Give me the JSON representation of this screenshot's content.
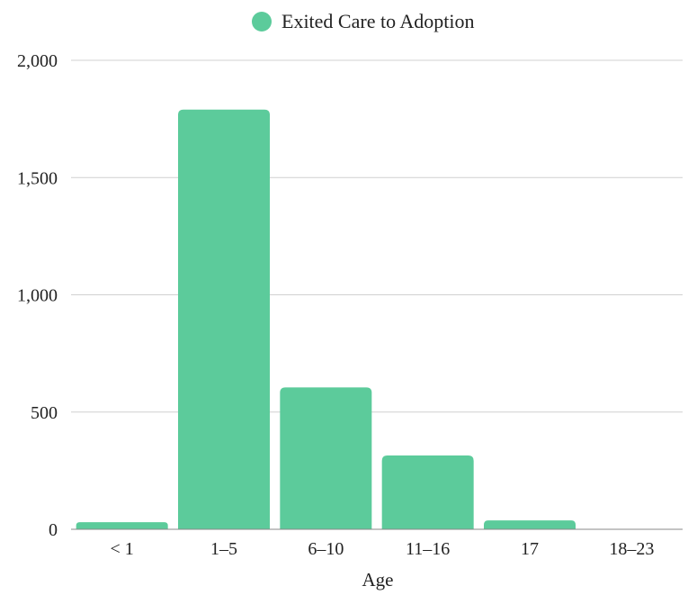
{
  "chart_data": {
    "type": "bar",
    "categories": [
      "< 1",
      "1–5",
      "6–10",
      "11–16",
      "17",
      "18–23"
    ],
    "series": [
      {
        "name": "Exited Care to Adoption",
        "values": [
          30,
          1790,
          605,
          315,
          38,
          0
        ]
      }
    ],
    "xlabel": "Age",
    "ylabel": "",
    "ylim": [
      0,
      2000
    ],
    "yticks": [
      0,
      500,
      1000,
      1500,
      2000
    ],
    "ytick_labels": [
      "0",
      "500",
      "1,000",
      "1,500",
      "2,000"
    ],
    "grid": true,
    "legend_position": "top-center"
  },
  "colors": {
    "bar": "#5ccb9b",
    "grid": "#d0d0d0",
    "axis": "#888888",
    "text": "#222222"
  }
}
